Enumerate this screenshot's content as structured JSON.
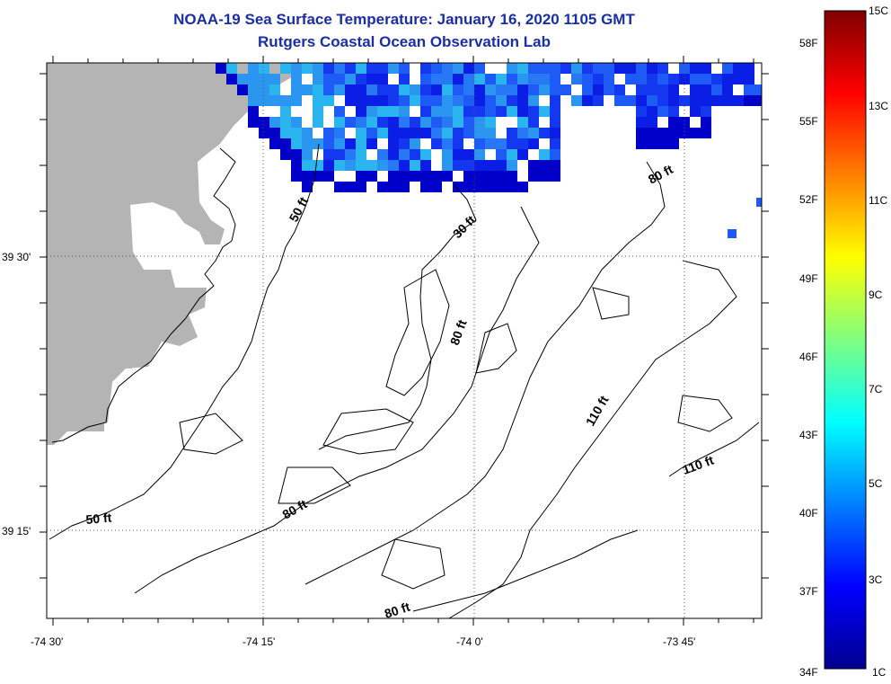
{
  "title": "NOAA-19 Sea Surface Temperature:  January 16, 2020 1105 GMT",
  "subtitle": "Rutgers Coastal Ocean Observation Lab",
  "lon_labels": [
    "-74 30'",
    "-74 15'",
    "-74 0'",
    "-73 45'"
  ],
  "lat_labels": [
    "39 30'",
    "39 15'"
  ],
  "depth_labels": {
    "l50a": "50 ft",
    "l50b": "50 ft",
    "l30": "30 ft",
    "l80n": "80 ft",
    "l80a": "80 ft",
    "l80b": "80 ft",
    "l80c": "80 ft",
    "l110a": "110 ft",
    "l110b": "110 ft"
  },
  "colorbar": {
    "top": "15C",
    "bottom": "1C",
    "bottom_f": "34F",
    "f_labels": [
      "58F",
      "55F",
      "52F",
      "49F",
      "46F",
      "43F",
      "40F",
      "37F"
    ],
    "c_labels": [
      "13C",
      "11C",
      "9C",
      "7C",
      "5C",
      "3C"
    ]
  },
  "colors": {
    "land": "#b4b4b4",
    "title": "#1a2ea8"
  }
}
